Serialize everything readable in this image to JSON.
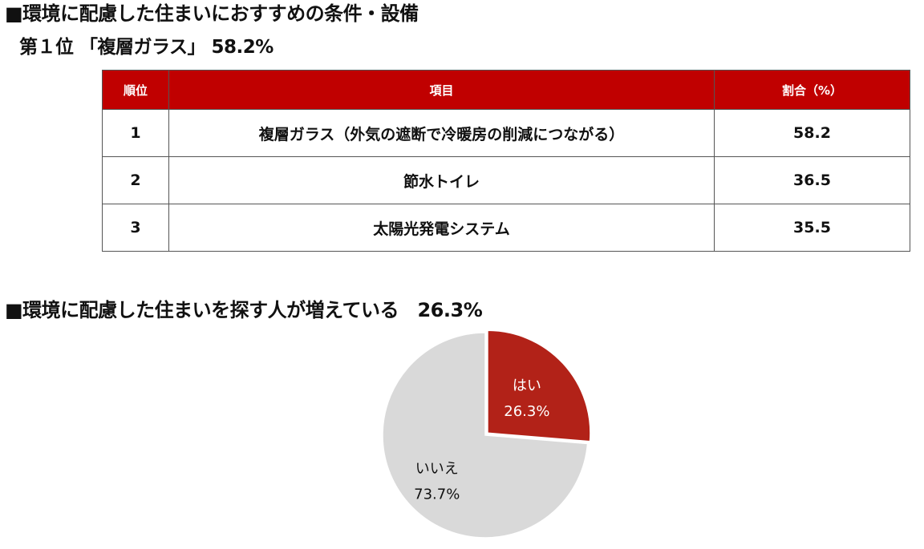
{
  "heading1": "■環境に配慮した住まいにおすすめの条件・設備",
  "subheading1": "第１位 「複層ガラス」 58.2%",
  "heading2": "■環境に配慮した住まいを探す人が増えている　26.3%",
  "colors": {
    "header_bg": "#c00000",
    "pie_yes": "#b22218",
    "pie_no": "#d9d9d9"
  },
  "chart_data": [
    {
      "type": "table",
      "columns": [
        "順位",
        "項目",
        "割合（%）"
      ],
      "rows": [
        {
          "rank": "1",
          "item": "複層ガラス（外気の遮断で冷暖房の削減につながる）",
          "value": "58.2"
        },
        {
          "rank": "2",
          "item": "節水トイレ",
          "value": "36.5"
        },
        {
          "rank": "3",
          "item": "太陽光発電システム",
          "value": "35.5"
        }
      ]
    },
    {
      "type": "pie",
      "slices": [
        {
          "label": "はい",
          "value": 26.3,
          "value_label": "26.3%"
        },
        {
          "label": "いいえ",
          "value": 73.7,
          "value_label": "73.7%"
        }
      ]
    }
  ]
}
